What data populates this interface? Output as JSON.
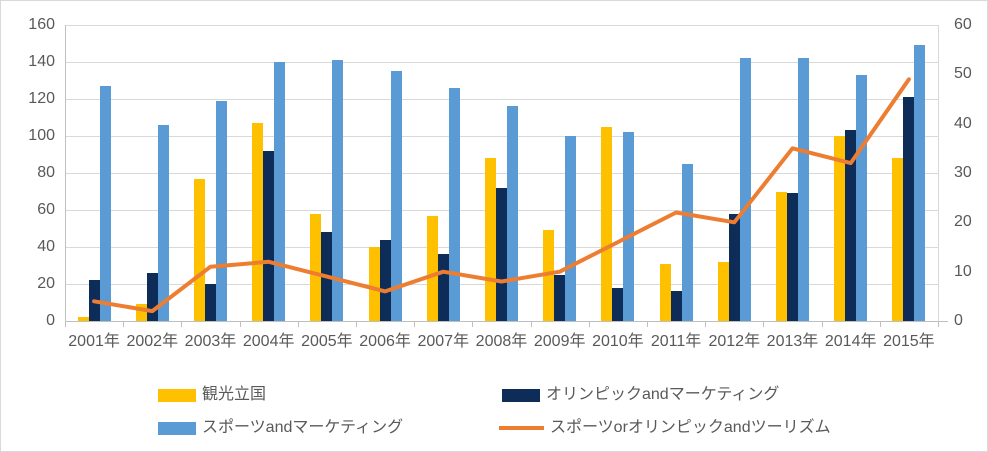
{
  "chart_data": {
    "type": "bar+line-combo",
    "categories": [
      "2001年",
      "2002年",
      "2003年",
      "2004年",
      "2005年",
      "2006年",
      "2007年",
      "2008年",
      "2009年",
      "2010年",
      "2011年",
      "2012年",
      "2013年",
      "2014年",
      "2015年"
    ],
    "series": [
      {
        "key": "kankou-rikkoku",
        "name": "観光立国",
        "type": "bar",
        "axis": "left",
        "color": "#FFC000",
        "values": [
          2,
          9,
          77,
          107,
          58,
          40,
          57,
          88,
          49,
          105,
          31,
          32,
          70,
          100,
          88
        ]
      },
      {
        "key": "olympic-and-marketing",
        "name": "オリンピックandマーケティング",
        "type": "bar",
        "axis": "left",
        "color": "#0E2C58",
        "values": [
          22,
          26,
          20,
          92,
          48,
          44,
          36,
          72,
          25,
          18,
          16,
          58,
          69,
          103,
          121
        ]
      },
      {
        "key": "sports-and-marketing",
        "name": "スポーツandマーケティング",
        "type": "bar",
        "axis": "left",
        "color": "#5B9BD5",
        "values": [
          127,
          106,
          119,
          140,
          141,
          135,
          126,
          116,
          100,
          102,
          85,
          142,
          142,
          133,
          149
        ]
      },
      {
        "key": "sports-or-olympic-and-tourism",
        "name": "スポーツorオリンピックandツーリズム",
        "type": "line",
        "axis": "right",
        "color": "#ED7D31",
        "values": [
          4,
          2,
          11,
          12,
          9,
          6,
          10,
          8,
          10,
          16,
          22,
          20,
          35,
          32,
          49
        ]
      }
    ],
    "left_axis": {
      "min": 0,
      "max": 160,
      "step": 20,
      "tick_labels": [
        "0",
        "20",
        "40",
        "60",
        "80",
        "100",
        "120",
        "140",
        "160"
      ]
    },
    "right_axis": {
      "min": 0,
      "max": 60,
      "step": 10,
      "tick_labels": [
        "0",
        "10",
        "20",
        "30",
        "40",
        "50",
        "60"
      ]
    },
    "grid": true,
    "legend_position": "bottom"
  },
  "colors": {
    "background": "#FFFFFF",
    "border": "#D9D9D9",
    "gridline": "#D9D9D9",
    "axis_line": "#BFBFBF",
    "axis_text": "#595959"
  }
}
